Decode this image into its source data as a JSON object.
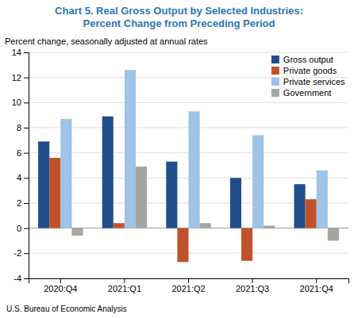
{
  "chart_data": {
    "type": "bar",
    "title": "Chart 5. Real Gross Output by Selected Industries:\nPercent Change from Preceding Period",
    "ylabel": "Percent change, seasonally adjusted at annual rates",
    "annotations": [
      "U.S. Bureau of Economic Analysis"
    ],
    "categories": [
      "2020:Q4",
      "2021:Q1",
      "2021:Q2",
      "2021:Q3",
      "2021:Q4"
    ],
    "series": [
      {
        "name": "Gross output",
        "color": "#1f4e8c",
        "values": [
          6.9,
          8.9,
          5.3,
          4.0,
          3.5
        ]
      },
      {
        "name": "Private goods",
        "color": "#c0522b",
        "values": [
          5.6,
          0.4,
          -2.7,
          -2.6,
          2.3
        ]
      },
      {
        "name": "Private services",
        "color": "#9dc3e6",
        "values": [
          8.7,
          12.6,
          9.3,
          7.4,
          4.6
        ]
      },
      {
        "name": "Government",
        "color": "#a5a5a5",
        "values": [
          -0.6,
          4.9,
          0.4,
          0.2,
          -1.0
        ]
      }
    ],
    "ylim": [
      -4,
      14
    ],
    "yticks": [
      -4,
      -2,
      0,
      2,
      4,
      6,
      8,
      10,
      12,
      14
    ],
    "grid": true,
    "legend": "upper right"
  }
}
